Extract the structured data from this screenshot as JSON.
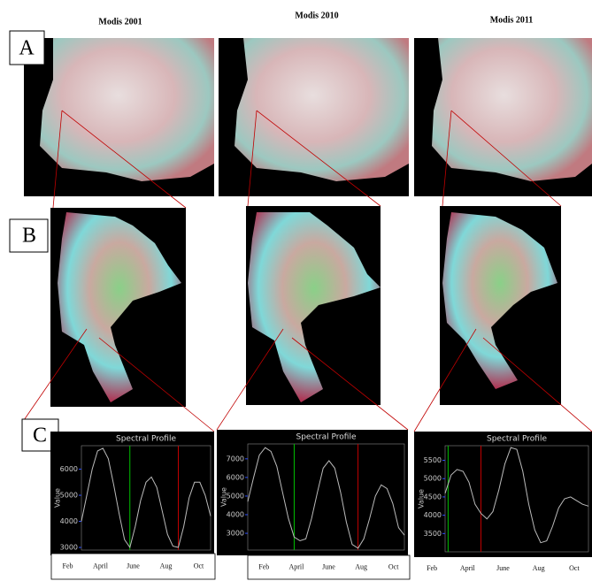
{
  "column_titles": [
    "Modis 2001",
    "Modis 2010",
    "Modis 2011"
  ],
  "panel_labels": [
    "A",
    "B",
    "C"
  ],
  "chart_data": [
    {
      "type": "line",
      "title": "Spectral Profile",
      "y_label": "Value",
      "ylim": [
        2900,
        6900
      ],
      "yticks": [
        3000,
        4000,
        5000,
        6000
      ],
      "series": [
        {
          "color": "#bbbbbb",
          "values": [
            4000,
            5000,
            6000,
            6700,
            6800,
            6400,
            5400,
            4300,
            3300,
            3000,
            3800,
            4800,
            5500,
            5700,
            5300,
            4400,
            3500,
            3050,
            3000,
            3800,
            4900,
            5500,
            5500,
            5000,
            4200
          ]
        }
      ],
      "markers": [
        {
          "color": "#00c000",
          "index": 9
        },
        {
          "color": "#c00000",
          "index": 18
        }
      ],
      "x_labels": [
        "Feb",
        "April",
        "June",
        "Aug",
        "Oct"
      ]
    },
    {
      "type": "line",
      "title": "Spectral Profile",
      "y_label": "Value",
      "ylim": [
        2100,
        7800
      ],
      "yticks": [
        3000,
        4000,
        5000,
        6000,
        7000
      ],
      "series": [
        {
          "color": "#bbbbbb",
          "values": [
            4700,
            6000,
            7200,
            7600,
            7400,
            6600,
            5200,
            3800,
            2800,
            2600,
            2700,
            3800,
            5200,
            6500,
            6900,
            6500,
            5200,
            3600,
            2400,
            2200,
            2700,
            3800,
            5000,
            5600,
            5400,
            4600,
            3300,
            2900
          ]
        }
      ],
      "markers": [
        {
          "color": "#00c000",
          "index": 8
        },
        {
          "color": "#c00000",
          "index": 19
        }
      ],
      "x_labels": [
        "Feb",
        "April",
        "June",
        "Aug",
        "Oct"
      ]
    },
    {
      "type": "line",
      "title": "Spectral Profile",
      "y_label": "Value",
      "ylim": [
        3000,
        5900
      ],
      "yticks": [
        3500,
        4000,
        4500,
        5000,
        5500
      ],
      "series": [
        {
          "color": "#bbbbbb",
          "values": [
            4600,
            5100,
            5250,
            5200,
            4900,
            4300,
            4050,
            3900,
            4100,
            4700,
            5400,
            5850,
            5800,
            5200,
            4300,
            3600,
            3250,
            3300,
            3700,
            4200,
            4450,
            4500,
            4400,
            4300,
            4250
          ]
        }
      ],
      "markers": [
        {
          "color": "#00c000",
          "index": 0.5
        },
        {
          "color": "#c00000",
          "index": 6
        }
      ],
      "x_labels": [
        "Feb",
        "April",
        "June",
        "Aug",
        "Oct"
      ]
    }
  ]
}
